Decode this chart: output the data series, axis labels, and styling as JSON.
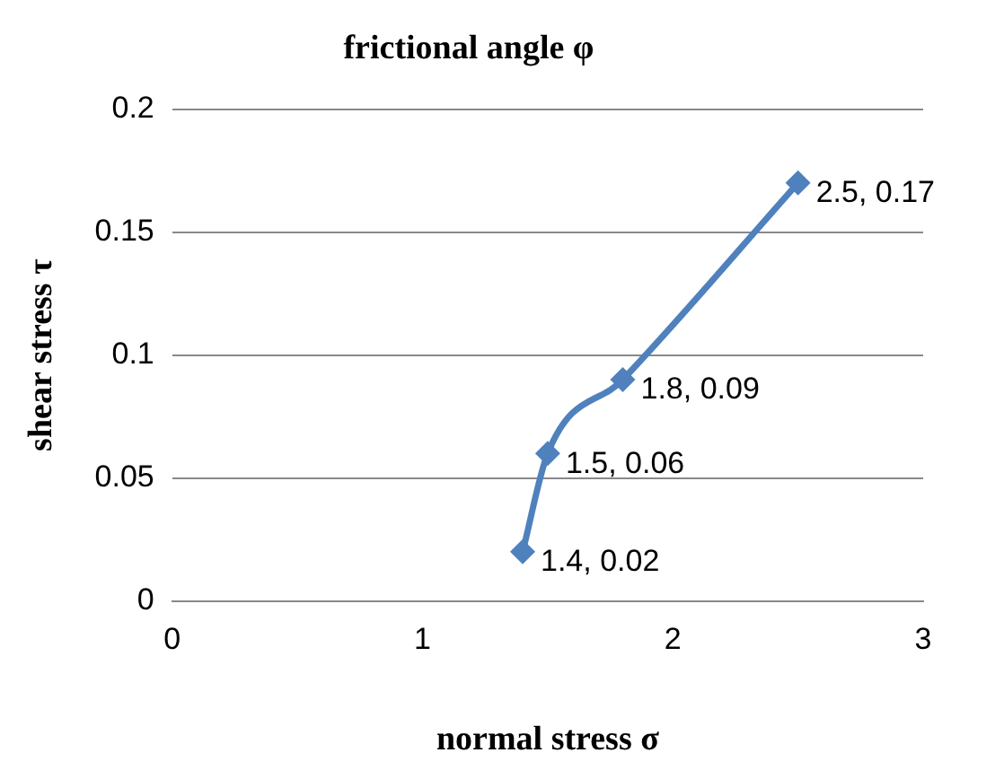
{
  "chart_data": {
    "type": "line",
    "title": "frictional angle φ",
    "xlabel": "normal stress σ",
    "ylabel": "shear stress τ",
    "x": [
      1.4,
      1.5,
      1.8,
      2.5
    ],
    "series": [
      {
        "color": "#4f81bd",
        "values": [
          0.02,
          0.06,
          0.09,
          0.17
        ],
        "value_labels": [
          "1.4, 0.02",
          "1.5, 0.06",
          "1.8, 0.09",
          "2.5, 0.17"
        ]
      }
    ],
    "xlim": [
      0,
      3
    ],
    "xticks": [
      0,
      1,
      2,
      3
    ],
    "ylim": [
      0,
      0.2
    ],
    "yticks": [
      0,
      0.05,
      0.1,
      0.15,
      0.2
    ],
    "grid": "y",
    "legend": false,
    "marker": "diamond",
    "line_style": "solid"
  }
}
